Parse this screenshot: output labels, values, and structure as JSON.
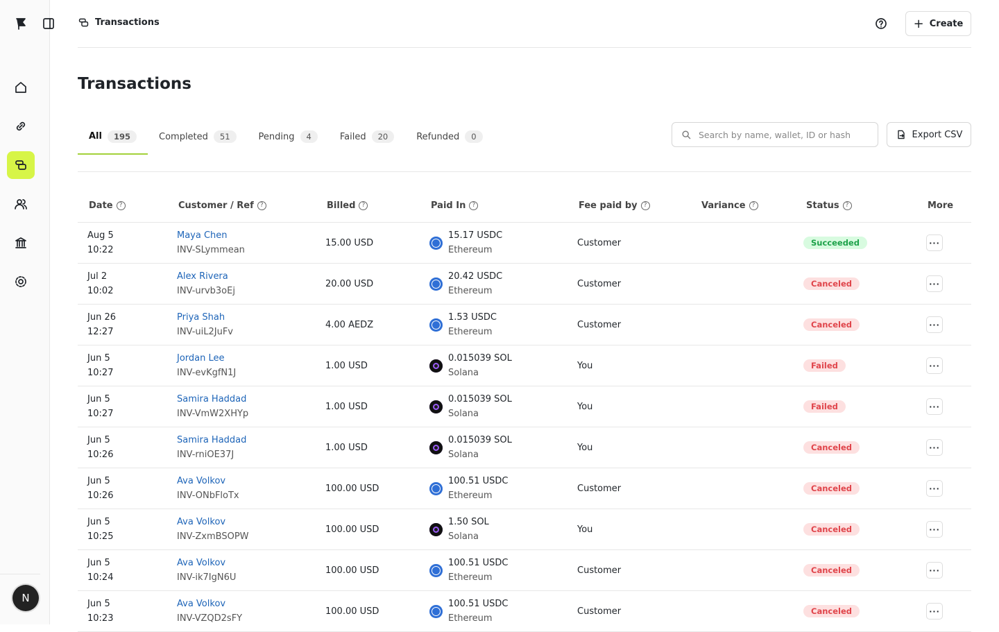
{
  "header": {
    "title": "Transactions",
    "create": "Create"
  },
  "page_title": "Transactions",
  "tabs": [
    {
      "label": "All",
      "count": 195
    },
    {
      "label": "Completed",
      "count": 51
    },
    {
      "label": "Pending",
      "count": 4
    },
    {
      "label": "Failed",
      "count": 20
    },
    {
      "label": "Refunded",
      "count": 0
    }
  ],
  "search_placeholder": "Search by name, wallet, ID or hash",
  "export": "Export CSV",
  "avatar": "N",
  "table": {
    "columns": [
      "Date",
      "Customer / Ref",
      "Billed",
      "Paid In",
      "Fee paid by",
      "Variance",
      "Status",
      "More"
    ],
    "rows": [
      {
        "date": "Aug 5",
        "time": "10:22",
        "customer": "Maya Chen",
        "ref": "INV-SLymmean",
        "billed": "15.00 USD",
        "paid": "15.17 USDC",
        "network": "Ethereum",
        "fee": "Customer",
        "status": "Succeeded"
      },
      {
        "date": "Jul 2",
        "time": "10:02",
        "customer": "Alex Rivera",
        "ref": "INV-urvb3oEj",
        "billed": "20.00 USD",
        "paid": "20.42 USDC",
        "network": "Ethereum",
        "fee": "Customer",
        "status": "Canceled"
      },
      {
        "date": "Jun 26",
        "time": "12:27",
        "customer": "Priya Shah",
        "ref": "INV-uiL2JuFv",
        "billed": "4.00 AEDZ",
        "paid": "1.53 USDC",
        "network": "Ethereum",
        "fee": "Customer",
        "status": "Canceled"
      },
      {
        "date": "Jun 5",
        "time": "10:27",
        "customer": "Jordan Lee",
        "ref": "INV-evKgfN1J",
        "billed": "1.00 USD",
        "paid": "0.015039 SOL",
        "network": "Solana",
        "fee": "You",
        "status": "Failed"
      },
      {
        "date": "Jun 5",
        "time": "10:27",
        "customer": "Samira Haddad",
        "ref": "INV-VmW2XHYp",
        "billed": "1.00 USD",
        "paid": "0.015039 SOL",
        "network": "Solana",
        "fee": "You",
        "status": "Failed"
      },
      {
        "date": "Jun 5",
        "time": "10:26",
        "customer": "Samira Haddad",
        "ref": "INV-rniOE37J",
        "billed": "1.00 USD",
        "paid": "0.015039 SOL",
        "network": "Solana",
        "fee": "You",
        "status": "Canceled"
      },
      {
        "date": "Jun 5",
        "time": "10:26",
        "customer": "Ava Volkov",
        "ref": "INV-ONbFloTx",
        "billed": "100.00 USD",
        "paid": "100.51 USDC",
        "network": "Ethereum",
        "fee": "Customer",
        "status": "Canceled"
      },
      {
        "date": "Jun 5",
        "time": "10:25",
        "customer": "Ava Volkov",
        "ref": "INV-ZxmBSOPW",
        "billed": "100.00 USD",
        "paid": "1.50 SOL",
        "network": "Solana",
        "fee": "You",
        "status": "Canceled"
      },
      {
        "date": "Jun 5",
        "time": "10:24",
        "customer": "Ava Volkov",
        "ref": "INV-ik7IgN6U",
        "billed": "100.00 USD",
        "paid": "100.51 USDC",
        "network": "Ethereum",
        "fee": "Customer",
        "status": "Canceled"
      },
      {
        "date": "Jun 5",
        "time": "10:23",
        "customer": "Ava Volkov",
        "ref": "INV-VZQD2sFY",
        "billed": "100.00 USD",
        "paid": "100.51 USDC",
        "network": "Ethereum",
        "fee": "Customer",
        "status": "Canceled"
      }
    ]
  }
}
